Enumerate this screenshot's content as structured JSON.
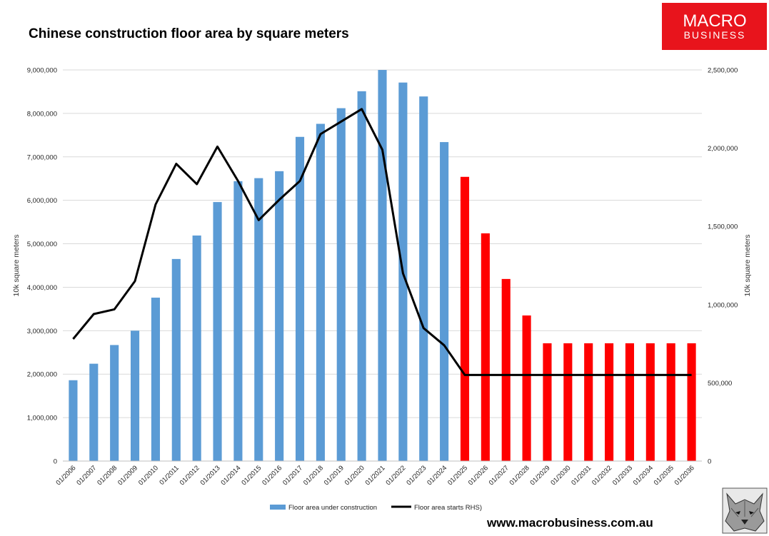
{
  "brand": {
    "logo_line1": "MACRO",
    "logo_line2": "BUSINESS",
    "logo_color": "#e8141c",
    "website": "www.macrobusiness.com.au",
    "mascot": "wolf-icon"
  },
  "chart_data": {
    "type": "bar",
    "title": "Chinese construction floor area by square meters",
    "ylabel": "10k square meters",
    "y2label": "10k square meters",
    "ylim": [
      0,
      9000000
    ],
    "y2lim": [
      0,
      2500000
    ],
    "yticks": [
      0,
      1000000,
      2000000,
      3000000,
      4000000,
      5000000,
      6000000,
      7000000,
      8000000,
      9000000
    ],
    "ytick_labels": [
      "0",
      "1,000,000",
      "2,000,000",
      "3,000,000",
      "4,000,000",
      "5,000,000",
      "6,000,000",
      "7,000,000",
      "8,000,000",
      "9,000,000"
    ],
    "y2ticks": [
      0,
      500000,
      1000000,
      1500000,
      2000000,
      2500000
    ],
    "y2tick_labels": [
      "0",
      "500,000",
      "1,000,000",
      "1,500,000",
      "2,000,000",
      "2,500,000"
    ],
    "categories": [
      "01/2006",
      "01/2007",
      "01/2008",
      "01/2009",
      "01/2010",
      "01/2011",
      "01/2012",
      "01/2013",
      "01/2014",
      "01/2015",
      "01/2016",
      "01/2017",
      "01/2018",
      "01/2019",
      "01/2020",
      "01/2021",
      "01/2022",
      "01/2023",
      "01/2024",
      "01/2025",
      "01/2026",
      "01/2027",
      "01/2028",
      "01/2029",
      "01/2030",
      "01/2031",
      "01/2032",
      "01/2033",
      "01/2034",
      "01/2035",
      "01/2036"
    ],
    "grid": true,
    "legend_position": "bottom",
    "series": [
      {
        "name": "Floor area under construction",
        "kind": "bar",
        "axis": "left",
        "color": "#5b9bd5",
        "forecast_color": "#ff0000",
        "forecast_start_index": 19,
        "values": [
          1860000,
          2240000,
          2670000,
          3000000,
          3760000,
          4650000,
          5190000,
          5960000,
          6440000,
          6510000,
          6670000,
          7460000,
          7760000,
          8120000,
          8510000,
          9000000,
          8710000,
          8390000,
          7340000,
          6540000,
          5240000,
          4190000,
          3350000,
          2710000,
          2710000,
          2710000,
          2710000,
          2710000,
          2710000,
          2710000,
          2710000
        ]
      },
      {
        "name": "Floor area starts RHS)",
        "kind": "line",
        "axis": "right",
        "color": "#000000",
        "values": [
          780000,
          940000,
          970000,
          1150000,
          1640000,
          1900000,
          1770000,
          2010000,
          1790000,
          1540000,
          1670000,
          1790000,
          2090000,
          2170000,
          2250000,
          1990000,
          1200000,
          850000,
          740000,
          550000,
          550000,
          550000,
          550000,
          550000,
          550000,
          550000,
          550000,
          550000,
          550000,
          550000,
          550000
        ]
      }
    ]
  }
}
